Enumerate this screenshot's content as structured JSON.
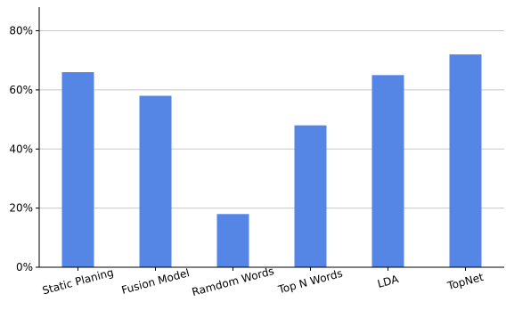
{
  "chart_data": {
    "type": "bar",
    "title": "",
    "xlabel": "",
    "ylabel": "",
    "categories": [
      "Static Planing",
      "Fusion Model",
      "Ramdom Words",
      "Top N Words",
      "LDA",
      "TopNet"
    ],
    "values": [
      66,
      58,
      18,
      48,
      65,
      72
    ],
    "ylim": [
      0,
      88
    ],
    "yticks": [
      0,
      20,
      40,
      60,
      80
    ],
    "ytick_labels": [
      "0%",
      "20%",
      "40%",
      "60%",
      "80%"
    ],
    "grid": "horizontal",
    "legend": "none",
    "bar_color": "#5585e5",
    "grid_color": "#c8c8c8"
  }
}
